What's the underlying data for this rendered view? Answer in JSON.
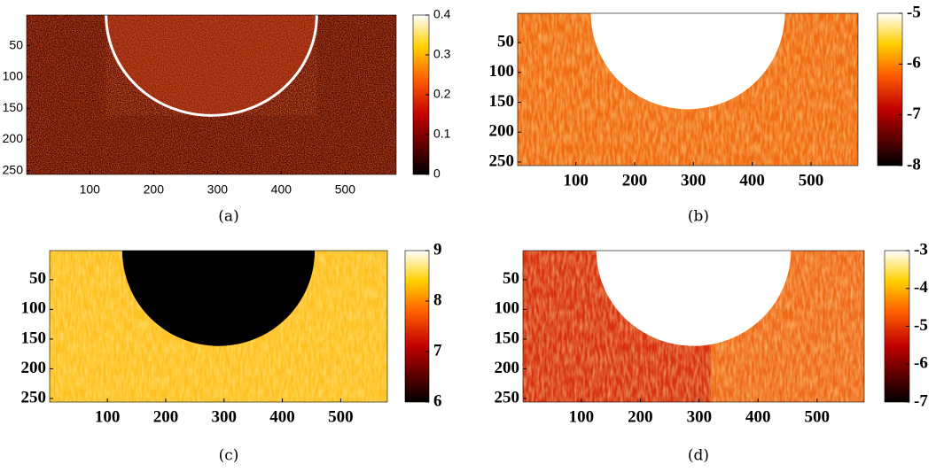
{
  "chart_data": [
    {
      "type": "heatmap",
      "caption": "(a)",
      "colormap": "hot",
      "xlim": [
        1,
        580
      ],
      "ylim": [
        1,
        256
      ],
      "y_reversed": true,
      "xticks": [
        100,
        200,
        300,
        400,
        500
      ],
      "yticks": [
        50,
        100,
        150,
        200,
        250
      ],
      "clim": [
        0,
        0.4
      ],
      "cticks": [
        0,
        0.1,
        0.2,
        0.3,
        0.4
      ]
    },
    {
      "type": "heatmap",
      "caption": "(b)",
      "colormap": "hot",
      "xlim": [
        1,
        580
      ],
      "ylim": [
        1,
        256
      ],
      "y_reversed": true,
      "xticks": [
        100,
        200,
        300,
        400,
        500
      ],
      "yticks": [
        50,
        100,
        150,
        200,
        250
      ],
      "clim": [
        -8,
        -5
      ],
      "cticks": [
        -8,
        -7,
        -6,
        -5
      ]
    },
    {
      "type": "heatmap",
      "caption": "(c)",
      "colormap": "hot",
      "xlim": [
        1,
        580
      ],
      "ylim": [
        1,
        256
      ],
      "y_reversed": true,
      "xticks": [
        100,
        200,
        300,
        400,
        500
      ],
      "yticks": [
        50,
        100,
        150,
        200,
        250
      ],
      "clim": [
        6,
        9
      ],
      "cticks": [
        6,
        7,
        8,
        9
      ]
    },
    {
      "type": "heatmap",
      "caption": "(d)",
      "colormap": "hot",
      "xlim": [
        1,
        580
      ],
      "ylim": [
        1,
        256
      ],
      "y_reversed": true,
      "xticks": [
        100,
        200,
        300,
        400,
        500
      ],
      "yticks": [
        50,
        100,
        150,
        200,
        250
      ],
      "clim": [
        -7,
        -3
      ],
      "cticks": [
        -7,
        -6,
        -5,
        -4,
        -3
      ]
    }
  ]
}
